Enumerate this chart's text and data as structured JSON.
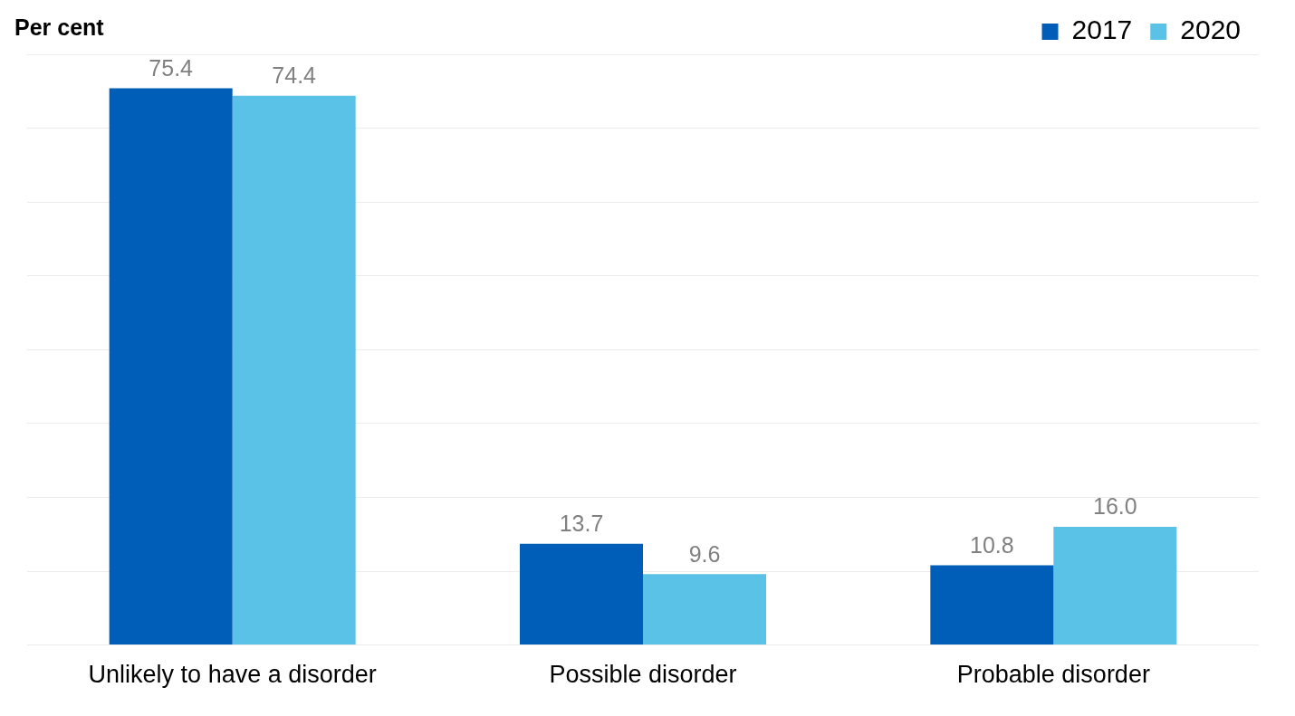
{
  "chart_data": {
    "type": "bar",
    "ylabel": "Per cent",
    "categories": [
      "Unlikely to have a disorder",
      "Possible disorder",
      "Probable disorder"
    ],
    "series": [
      {
        "name": "2017",
        "color": "#005eb8",
        "values": [
          75.4,
          13.7,
          10.8
        ],
        "value_labels": [
          "75.4",
          "13.7",
          "10.8"
        ]
      },
      {
        "name": "2020",
        "color": "#5bc2e7",
        "values": [
          74.4,
          9.6,
          16.0
        ],
        "value_labels": [
          "74.4",
          "9.6",
          "16.0"
        ]
      }
    ],
    "ylim": [
      0,
      80
    ],
    "yticks": [
      {
        "value": 0,
        "label": null
      },
      {
        "value": 10,
        "label": null
      },
      {
        "value": 20,
        "label": null
      },
      {
        "value": 30,
        "label": null
      },
      {
        "value": 40,
        "label": null
      },
      {
        "value": 50,
        "label": null
      },
      {
        "value": 60,
        "label": null
      },
      {
        "value": 70,
        "label": null
      },
      {
        "value": 80,
        "label": null
      }
    ],
    "tick_labels": "x",
    "grid": "y",
    "legend": "top right",
    "data_labels": true
  }
}
